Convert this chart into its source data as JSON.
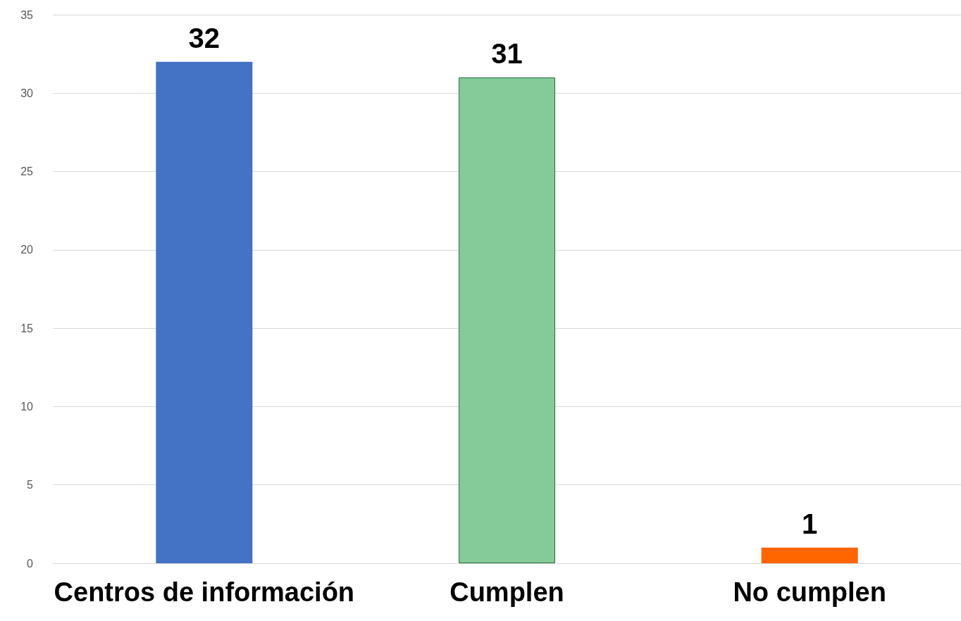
{
  "chart_data": {
    "type": "bar",
    "categories": [
      "Centros de información",
      "Cumplen",
      "No cumplen"
    ],
    "values": [
      32,
      31,
      1
    ],
    "colors": [
      "#4472c4",
      "#85cb9a",
      "#ff6600"
    ],
    "ylim": [
      0,
      35
    ],
    "yticks": [
      0,
      5,
      10,
      15,
      20,
      25,
      30,
      35
    ],
    "grid": "y",
    "data_labels": true
  }
}
